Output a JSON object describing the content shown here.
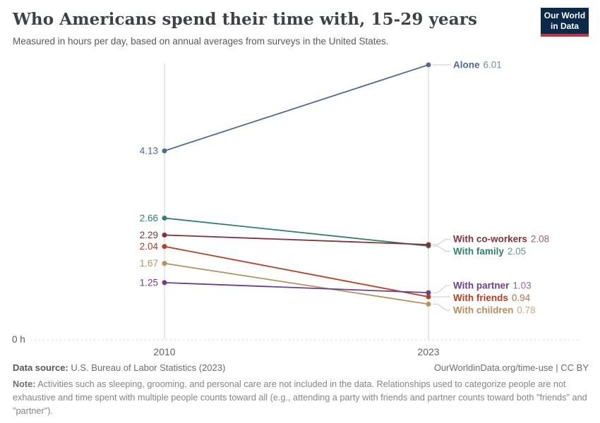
{
  "header": {
    "title": "Who Americans spend their time with, 15-29 years",
    "subtitle": "Measured in hours per day, based on annual averages from surveys in the United States.",
    "logo": {
      "line1": "Our World",
      "line2": "in Data"
    }
  },
  "chart_data": {
    "type": "line",
    "variant": "slope",
    "x": [
      "2010",
      "2023"
    ],
    "series": [
      {
        "name": "Alone",
        "color": "#4C6A9C",
        "values": [
          4.13,
          6.01
        ]
      },
      {
        "name": "With family",
        "color": "#2C8465",
        "values": [
          2.66,
          2.05
        ]
      },
      {
        "name": "With co-workers",
        "color": "#883039",
        "values": [
          2.29,
          2.08
        ]
      },
      {
        "name": "With friends",
        "color": "#BC3D1D",
        "values": [
          2.04,
          0.94
        ]
      },
      {
        "name": "With children",
        "color": "#BC8E5A",
        "values": [
          1.67,
          0.78
        ]
      },
      {
        "name": "With partner",
        "color": "#6D3E91",
        "values": [
          1.25,
          1.03
        ]
      }
    ],
    "ylim": [
      0,
      6.2
    ],
    "y_zero_label": "0 h",
    "grid": "vertical-lines-at-endpoints-plus-dotted-zero-line",
    "legend_position": "inline-end-labels",
    "value_decimals": 2
  },
  "footer": {
    "data_source_label": "Data source:",
    "data_source": "U.S. Bureau of Labor Statistics (2023)",
    "link": "OurWorldinData.org/time-use | CC BY",
    "note_label": "Note:",
    "note": "Activities such as sleeping, grooming, and personal care are not included in the data. Relationships used to categorize people are not exhaustive and time spent with multiple people counts toward all (e.g., attending a party with friends and partner counts toward both \"friends\" and \"partner\")."
  },
  "colors": {
    "logo_navy": "#0b2a4a",
    "logo_red": "#c43440",
    "gridline": "#cfcfcf",
    "baseline_dotted": "#dcdcdc",
    "connector": "#c9c9c9",
    "axis_text": "#636363"
  }
}
